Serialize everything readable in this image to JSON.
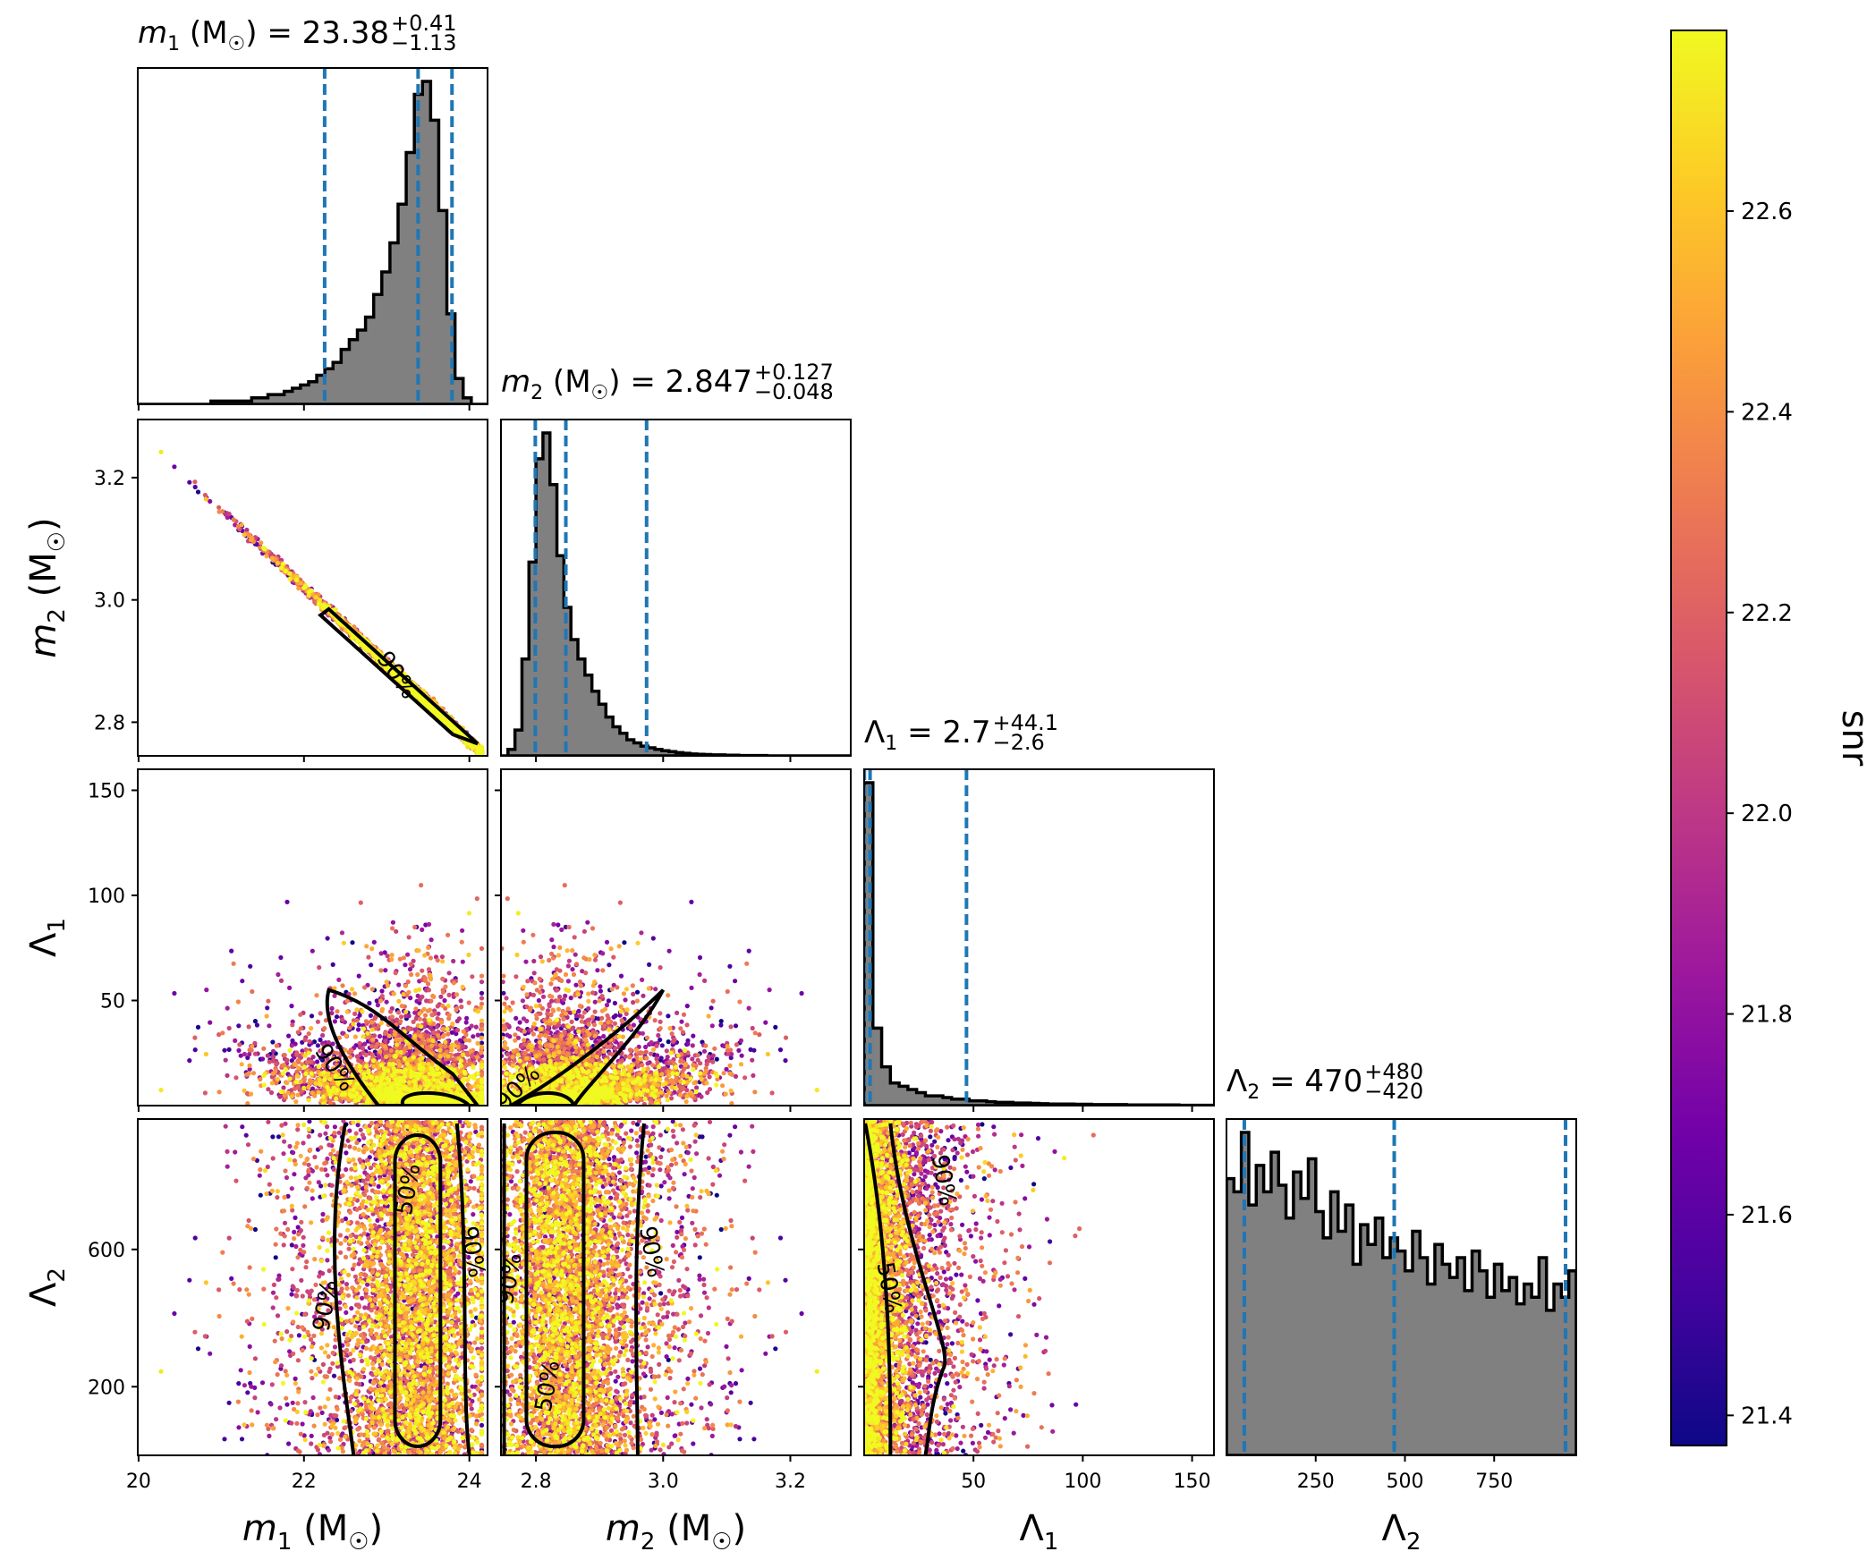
{
  "chart_data": {
    "type": "scatter",
    "subtype": "corner-plot",
    "parameters": [
      "m1",
      "m2",
      "Lambda1",
      "Lambda2"
    ],
    "axis_labels": {
      "m1": {
        "sym": "m",
        "sub": "1",
        "unit": " (M",
        "unit_end": ")"
      },
      "m2": {
        "sym": "m",
        "sub": "2",
        "unit": " (M",
        "unit_end": ")"
      },
      "Lambda1": {
        "sym": "Λ",
        "sub": "1",
        "unit": "",
        "unit_end": ""
      },
      "Lambda2": {
        "sym": "Λ",
        "sub": "2",
        "unit": "",
        "unit_end": ""
      }
    },
    "ranges": {
      "m1": [
        19.99,
        24.22
      ],
      "m2": [
        2.745,
        3.295
      ],
      "Lambda1": [
        0,
        160
      ],
      "Lambda2": [
        0,
        980
      ]
    },
    "ticks": {
      "m1": [
        20,
        22,
        24
      ],
      "m2": [
        2.8,
        3.0,
        3.2
      ],
      "Lambda1": [
        50,
        100,
        150
      ],
      "Lambda2": [
        250,
        500,
        750
      ],
      "Lambda1_y": [
        50,
        100,
        150
      ],
      "Lambda2_y": [
        200,
        600
      ],
      "m2_y": [
        2.8,
        3.0,
        3.2
      ]
    },
    "tick_labels": {
      "m1": [
        "20",
        "22",
        "24"
      ],
      "m2": [
        "2.8",
        "3.0",
        "3.2"
      ],
      "Lambda1": [
        "50",
        "100",
        "150"
      ],
      "Lambda2": [
        "250",
        "500",
        "750"
      ],
      "m2_y": [
        "2.8",
        "3.0",
        "3.2"
      ],
      "Lambda1_y": [
        "50",
        "100",
        "150"
      ],
      "Lambda2_y": [
        "200",
        "600"
      ]
    },
    "marginal_titles": {
      "m1": {
        "sym": "m",
        "sub": "1",
        "mid": " (M",
        "end": ") = ",
        "median": "23.38",
        "plus": "+0.41",
        "minus": "−1.13"
      },
      "m2": {
        "sym": "m",
        "sub": "2",
        "mid": " (M",
        "end": ") = ",
        "median": "2.847",
        "plus": "+0.127",
        "minus": "−0.048"
      },
      "Lambda1": {
        "sym": "Λ",
        "sub": "1",
        "mid": "",
        "end": " = ",
        "median": "2.7",
        "plus": "+44.1",
        "minus": "−2.6"
      },
      "Lambda2": {
        "sym": "Λ",
        "sub": "2",
        "mid": "",
        "end": " = ",
        "median": "470",
        "plus": "+480",
        "minus": "−420"
      }
    },
    "quantile_lines": {
      "m1": [
        22.25,
        23.38,
        23.79
      ],
      "m2": [
        2.799,
        2.847,
        2.974
      ],
      "Lambda1": [
        0.1,
        2.7,
        46.8
      ],
      "Lambda2": [
        50,
        470,
        950
      ]
    },
    "histograms": {
      "m1": [
        0,
        0,
        0,
        0,
        0,
        0,
        0,
        0,
        0,
        1,
        1,
        1,
        1,
        1,
        2,
        2,
        3,
        3,
        4,
        5,
        6,
        7,
        9,
        11,
        13,
        17,
        20,
        23,
        27,
        34,
        41,
        50,
        62,
        78,
        96,
        100,
        88,
        60,
        28,
        8,
        2,
        0,
        0
      ],
      "m2": [
        0,
        2,
        8,
        30,
        60,
        92,
        100,
        84,
        62,
        46,
        36,
        30,
        25,
        20,
        16,
        12,
        9,
        7,
        5,
        4,
        3,
        2.5,
        2,
        1.6,
        1.3,
        1,
        0.8,
        0.6,
        0.5,
        0.4,
        0.3,
        0.3,
        0.2,
        0.2,
        0.1,
        0.1,
        0.1,
        0.1,
        0,
        0,
        0,
        0,
        0,
        0,
        0,
        0,
        0,
        0,
        0,
        0
      ],
      "Lambda1": [
        100,
        24,
        12,
        7,
        6,
        5,
        4,
        3,
        3,
        2.5,
        2,
        2,
        1.5,
        1.5,
        1.2,
        1,
        1,
        0.8,
        0.8,
        0.7,
        0.6,
        0.5,
        0.5,
        0.5,
        0.4,
        0.4,
        0.3,
        0.3,
        0.3,
        0.3,
        0.2,
        0.2,
        0.2,
        0.2,
        0.2,
        0.2,
        0.1,
        0.1,
        0.1,
        0.1
      ],
      "Lambda2": [
        84,
        80,
        98,
        76,
        88,
        80,
        92,
        82,
        72,
        86,
        78,
        90,
        74,
        66,
        80,
        68,
        76,
        58,
        70,
        64,
        72,
        60,
        66,
        62,
        56,
        68,
        60,
        52,
        64,
        58,
        54,
        60,
        50,
        62,
        56,
        48,
        58,
        50,
        54,
        46,
        52,
        48,
        60,
        44,
        52,
        48,
        56
      ]
    },
    "contour_labels": [
      "50%",
      "90%"
    ],
    "colorbar": {
      "label": "snr",
      "range": [
        21.37,
        22.78
      ],
      "ticks": [
        21.4,
        21.6,
        21.8,
        22.0,
        22.2,
        22.4,
        22.6
      ],
      "tick_labels": [
        "21.4",
        "21.6",
        "21.8",
        "22.0",
        "22.2",
        "22.4",
        "22.6"
      ],
      "colormap": "plasma"
    },
    "colors": {
      "hist_fill": "#808080",
      "quantile_line": "#1f77b4",
      "contour": "#000000",
      "plasma": [
        "#0d0887",
        "#46039f",
        "#7201a8",
        "#9c179e",
        "#bd3786",
        "#d8576b",
        "#ed7953",
        "#fb9f3a",
        "#fdca26",
        "#f0f921"
      ]
    }
  }
}
